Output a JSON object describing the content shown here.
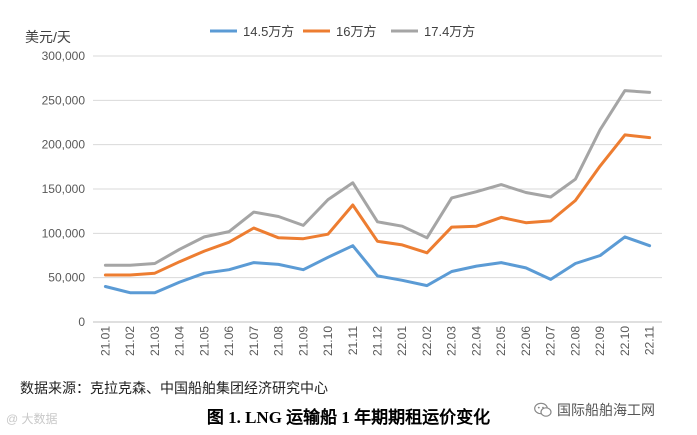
{
  "chart_data": {
    "type": "line",
    "ylabel": "美元/天",
    "ylim": [
      0,
      300000
    ],
    "yticks": [
      0,
      50000,
      100000,
      150000,
      200000,
      250000,
      300000
    ],
    "ytick_labels": [
      "0",
      "50,000",
      "100,000",
      "150,000",
      "200,000",
      "250,000",
      "300,000"
    ],
    "categories": [
      "21.01",
      "21.02",
      "21.03",
      "21.04",
      "21.05",
      "21.06",
      "21.07",
      "21.08",
      "21.09",
      "21.10",
      "21.11",
      "21.12",
      "22.01",
      "22.02",
      "22.03",
      "22.04",
      "22.05",
      "22.06",
      "22.07",
      "22.08",
      "22.09",
      "22.10",
      "22.11"
    ],
    "series": [
      {
        "name": "14.5万方",
        "color": "#5B9BD5",
        "values": [
          40000,
          33000,
          33000,
          45000,
          55000,
          59000,
          67000,
          65000,
          59000,
          73000,
          86000,
          52000,
          47000,
          41000,
          57000,
          63000,
          67000,
          61000,
          48000,
          66000,
          75000,
          96000,
          86000
        ]
      },
      {
        "name": "16万方",
        "color": "#ED7D31",
        "values": [
          53000,
          53000,
          55000,
          68000,
          80000,
          90000,
          106000,
          95000,
          94000,
          99000,
          132000,
          91000,
          87000,
          78000,
          107000,
          108000,
          118000,
          112000,
          114000,
          137000,
          176000,
          211000,
          208000
        ]
      },
      {
        "name": "17.4万方",
        "color": "#A5A5A5",
        "values": [
          64000,
          64000,
          66000,
          82000,
          96000,
          102000,
          124000,
          119000,
          109000,
          138000,
          157000,
          113000,
          108000,
          95000,
          140000,
          147000,
          155000,
          146000,
          141000,
          161000,
          217000,
          261000,
          259000
        ]
      }
    ],
    "legend_position": "top",
    "grid": true
  },
  "source_text": "数据来源：克拉克森、中国船舶集团经济研究中心",
  "caption": "图 1. LNG 运输船 1 年期期租运价变化",
  "watermark_left": "@ 大数据",
  "watermark_right": "国际船舶海工网",
  "wechat_icon": "wechat-icon"
}
